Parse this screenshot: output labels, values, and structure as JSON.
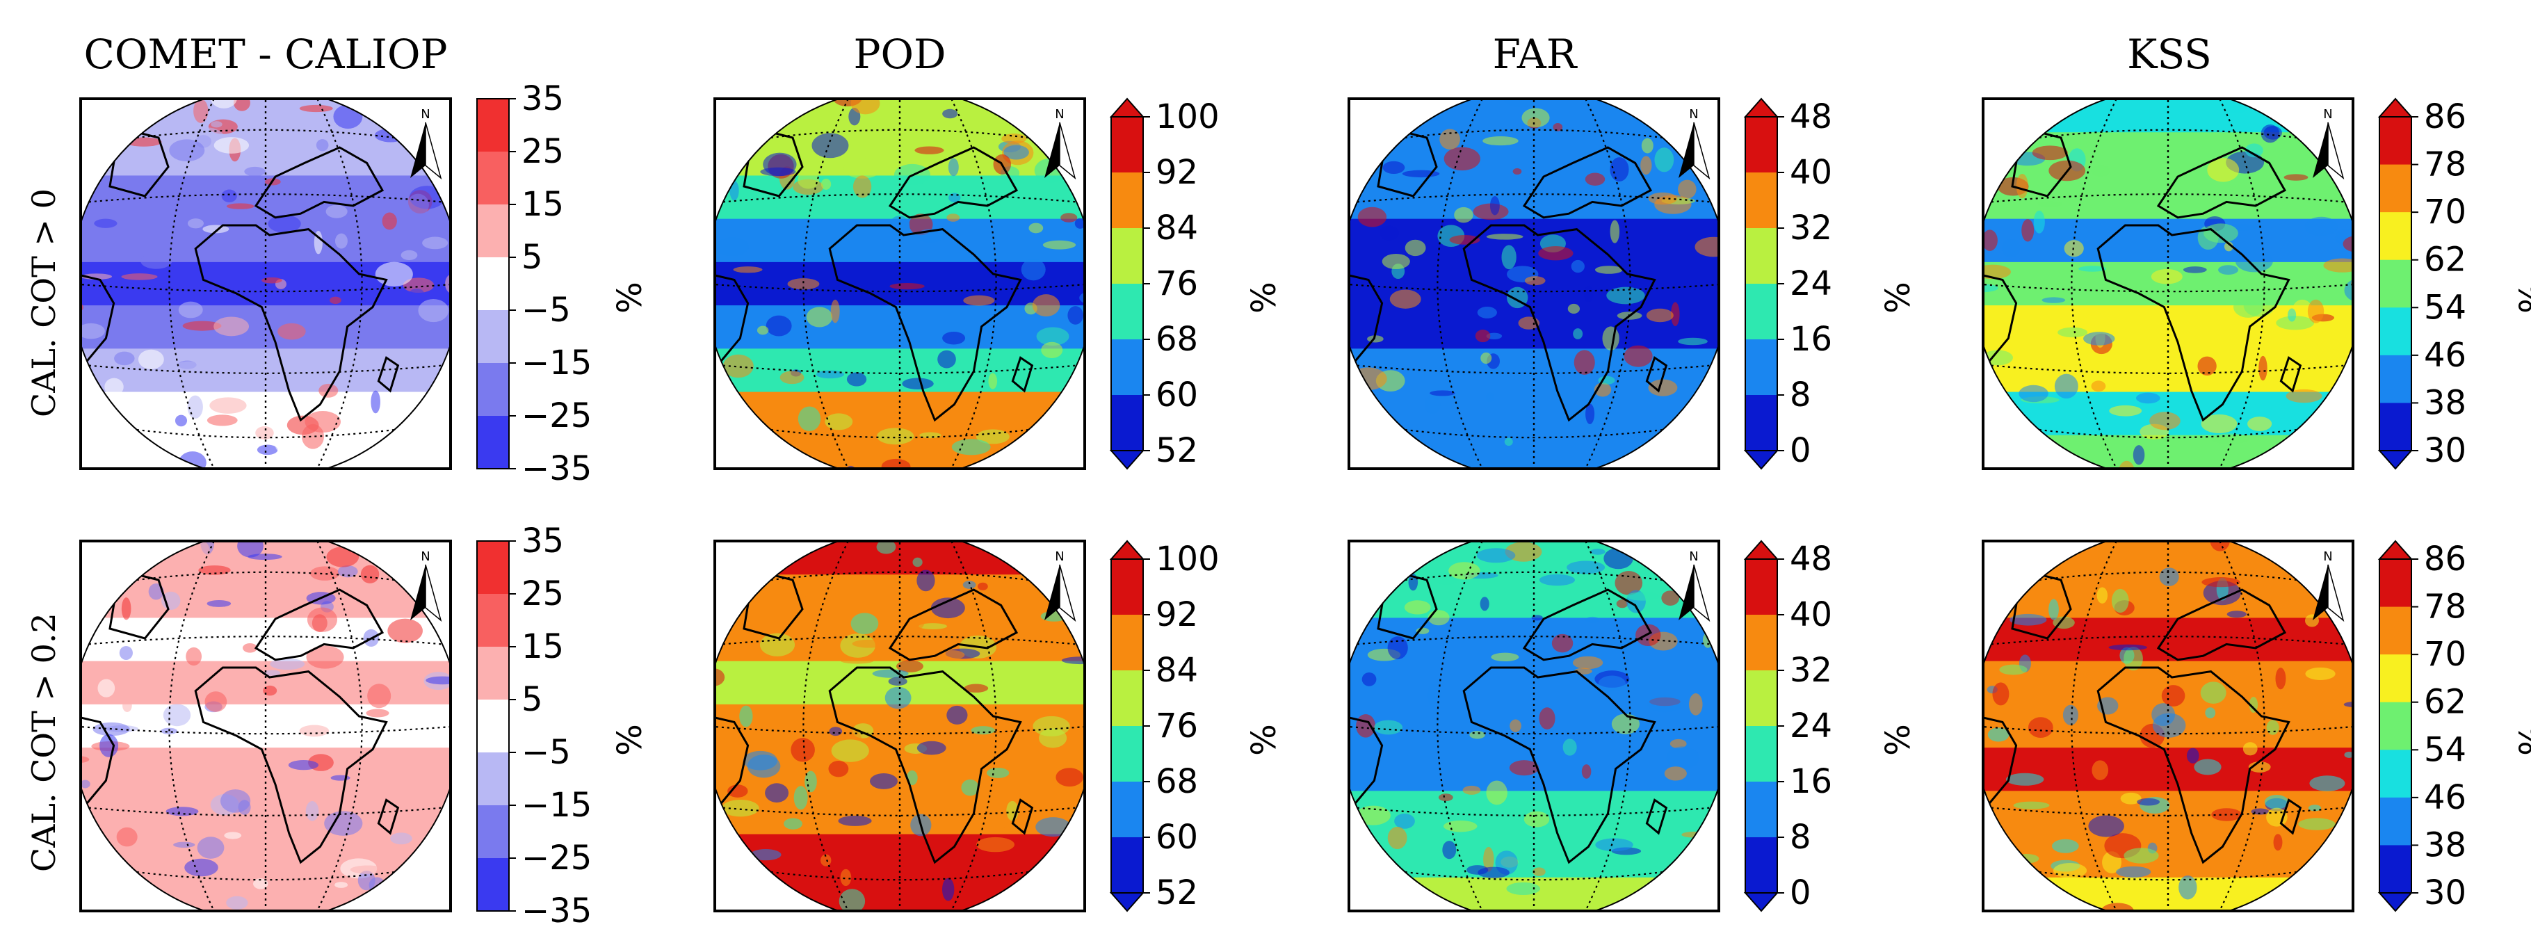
{
  "figure": {
    "columns": [
      {
        "id": "bias",
        "title": "COMET - CALIOP",
        "unit": "%",
        "ticks": [
          "35",
          "25",
          "15",
          "5",
          "−5",
          "−15",
          "−25",
          "−35"
        ],
        "extend": false
      },
      {
        "id": "pod",
        "title": "POD",
        "unit": "%",
        "ticks": [
          "100",
          "92",
          "84",
          "76",
          "68",
          "60",
          "52"
        ],
        "extend": true
      },
      {
        "id": "far",
        "title": "FAR",
        "unit": "%",
        "ticks": [
          "48",
          "40",
          "32",
          "24",
          "16",
          "8",
          "0"
        ],
        "extend": true
      },
      {
        "id": "kss",
        "title": "KSS",
        "unit": "%",
        "ticks": [
          "86",
          "78",
          "70",
          "62",
          "54",
          "46",
          "38",
          "30"
        ],
        "extend": true
      }
    ],
    "rows": [
      {
        "label": "CAL. COT > 0"
      },
      {
        "label": "CAL. COT > 0.2"
      }
    ],
    "north_arrow_label": "N"
  },
  "colors": {
    "bias": [
      "#f03030",
      "#f86060",
      "#fcb0b0",
      "#ffffff",
      "#b8b8f4",
      "#7a7aee",
      "#3a3af0"
    ],
    "jet": [
      "#d81010",
      "#f78a10",
      "#b9f040",
      "#2ee8b0",
      "#1a86f0",
      "#0a1ad0"
    ]
  },
  "chart_data": [
    {
      "type": "heatmap",
      "panel": "row1-bias",
      "title": "COMET - CALIOP",
      "row_label": "CAL. COT > 0",
      "colorbar_levels": [
        -35,
        -25,
        -15,
        -5,
        5,
        15,
        25,
        35
      ],
      "dominant": "negative bias (-5 to -25) in tropics",
      "unit": "%"
    },
    {
      "type": "heatmap",
      "panel": "row1-pod",
      "title": "POD",
      "row_label": "CAL. COT > 0",
      "colorbar_levels": [
        52,
        60,
        68,
        76,
        84,
        92,
        100
      ],
      "unit": "%"
    },
    {
      "type": "heatmap",
      "panel": "row1-far",
      "title": "FAR",
      "row_label": "CAL. COT > 0",
      "colorbar_levels": [
        0,
        8,
        16,
        24,
        32,
        40,
        48
      ],
      "unit": "%"
    },
    {
      "type": "heatmap",
      "panel": "row1-kss",
      "title": "KSS",
      "row_label": "CAL. COT > 0",
      "colorbar_levels": [
        30,
        38,
        46,
        54,
        62,
        70,
        78,
        86
      ],
      "unit": "%"
    },
    {
      "type": "heatmap",
      "panel": "row2-bias",
      "title": "COMET - CALIOP",
      "row_label": "CAL. COT > 0.2",
      "colorbar_levels": [
        -35,
        -25,
        -15,
        -5,
        5,
        15,
        25,
        35
      ],
      "dominant": "positive bias (5 to 15) over oceans",
      "unit": "%"
    },
    {
      "type": "heatmap",
      "panel": "row2-pod",
      "title": "POD",
      "row_label": "CAL. COT > 0.2",
      "colorbar_levels": [
        52,
        60,
        68,
        76,
        84,
        92,
        100
      ],
      "unit": "%"
    },
    {
      "type": "heatmap",
      "panel": "row2-far",
      "title": "FAR",
      "row_label": "CAL. COT > 0.2",
      "colorbar_levels": [
        0,
        8,
        16,
        24,
        32,
        40,
        48
      ],
      "unit": "%"
    },
    {
      "type": "heatmap",
      "panel": "row2-kss",
      "title": "KSS",
      "row_label": "CAL. COT > 0.2",
      "colorbar_levels": [
        30,
        38,
        46,
        54,
        62,
        70,
        78,
        86
      ],
      "unit": "%"
    }
  ]
}
